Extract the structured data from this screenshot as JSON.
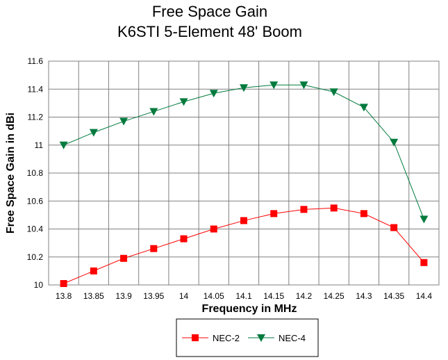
{
  "chart_data": {
    "type": "line",
    "title": "Free Space Gain",
    "subtitle": "K6STI 5-Element 48' Boom",
    "xlabel": "Frequency in MHz",
    "ylabel": "Free Space Gain in dBi",
    "x": [
      "13.8",
      "13.85",
      "13.9",
      "13.95",
      "14",
      "14.05",
      "14.1",
      "14.15",
      "14.2",
      "14.25",
      "14.3",
      "14.35",
      "14.4"
    ],
    "ylim": [
      10,
      11.6
    ],
    "yticks": [
      "10",
      "10.2",
      "10.4",
      "10.6",
      "10.8",
      "11",
      "11.2",
      "11.4",
      "11.6"
    ],
    "grid": true,
    "legend_position": "bottom",
    "series": [
      {
        "name": "NEC-2",
        "color": "#ff0000",
        "marker": "square",
        "values": [
          10.01,
          10.1,
          10.19,
          10.26,
          10.33,
          10.4,
          10.46,
          10.51,
          10.54,
          10.55,
          10.51,
          10.41,
          10.16
        ]
      },
      {
        "name": "NEC-4",
        "color": "#007a3d",
        "marker": "triangle-down",
        "values": [
          11.0,
          11.09,
          11.17,
          11.24,
          11.31,
          11.37,
          11.41,
          11.43,
          11.43,
          11.38,
          11.27,
          11.02,
          10.47
        ]
      }
    ]
  }
}
